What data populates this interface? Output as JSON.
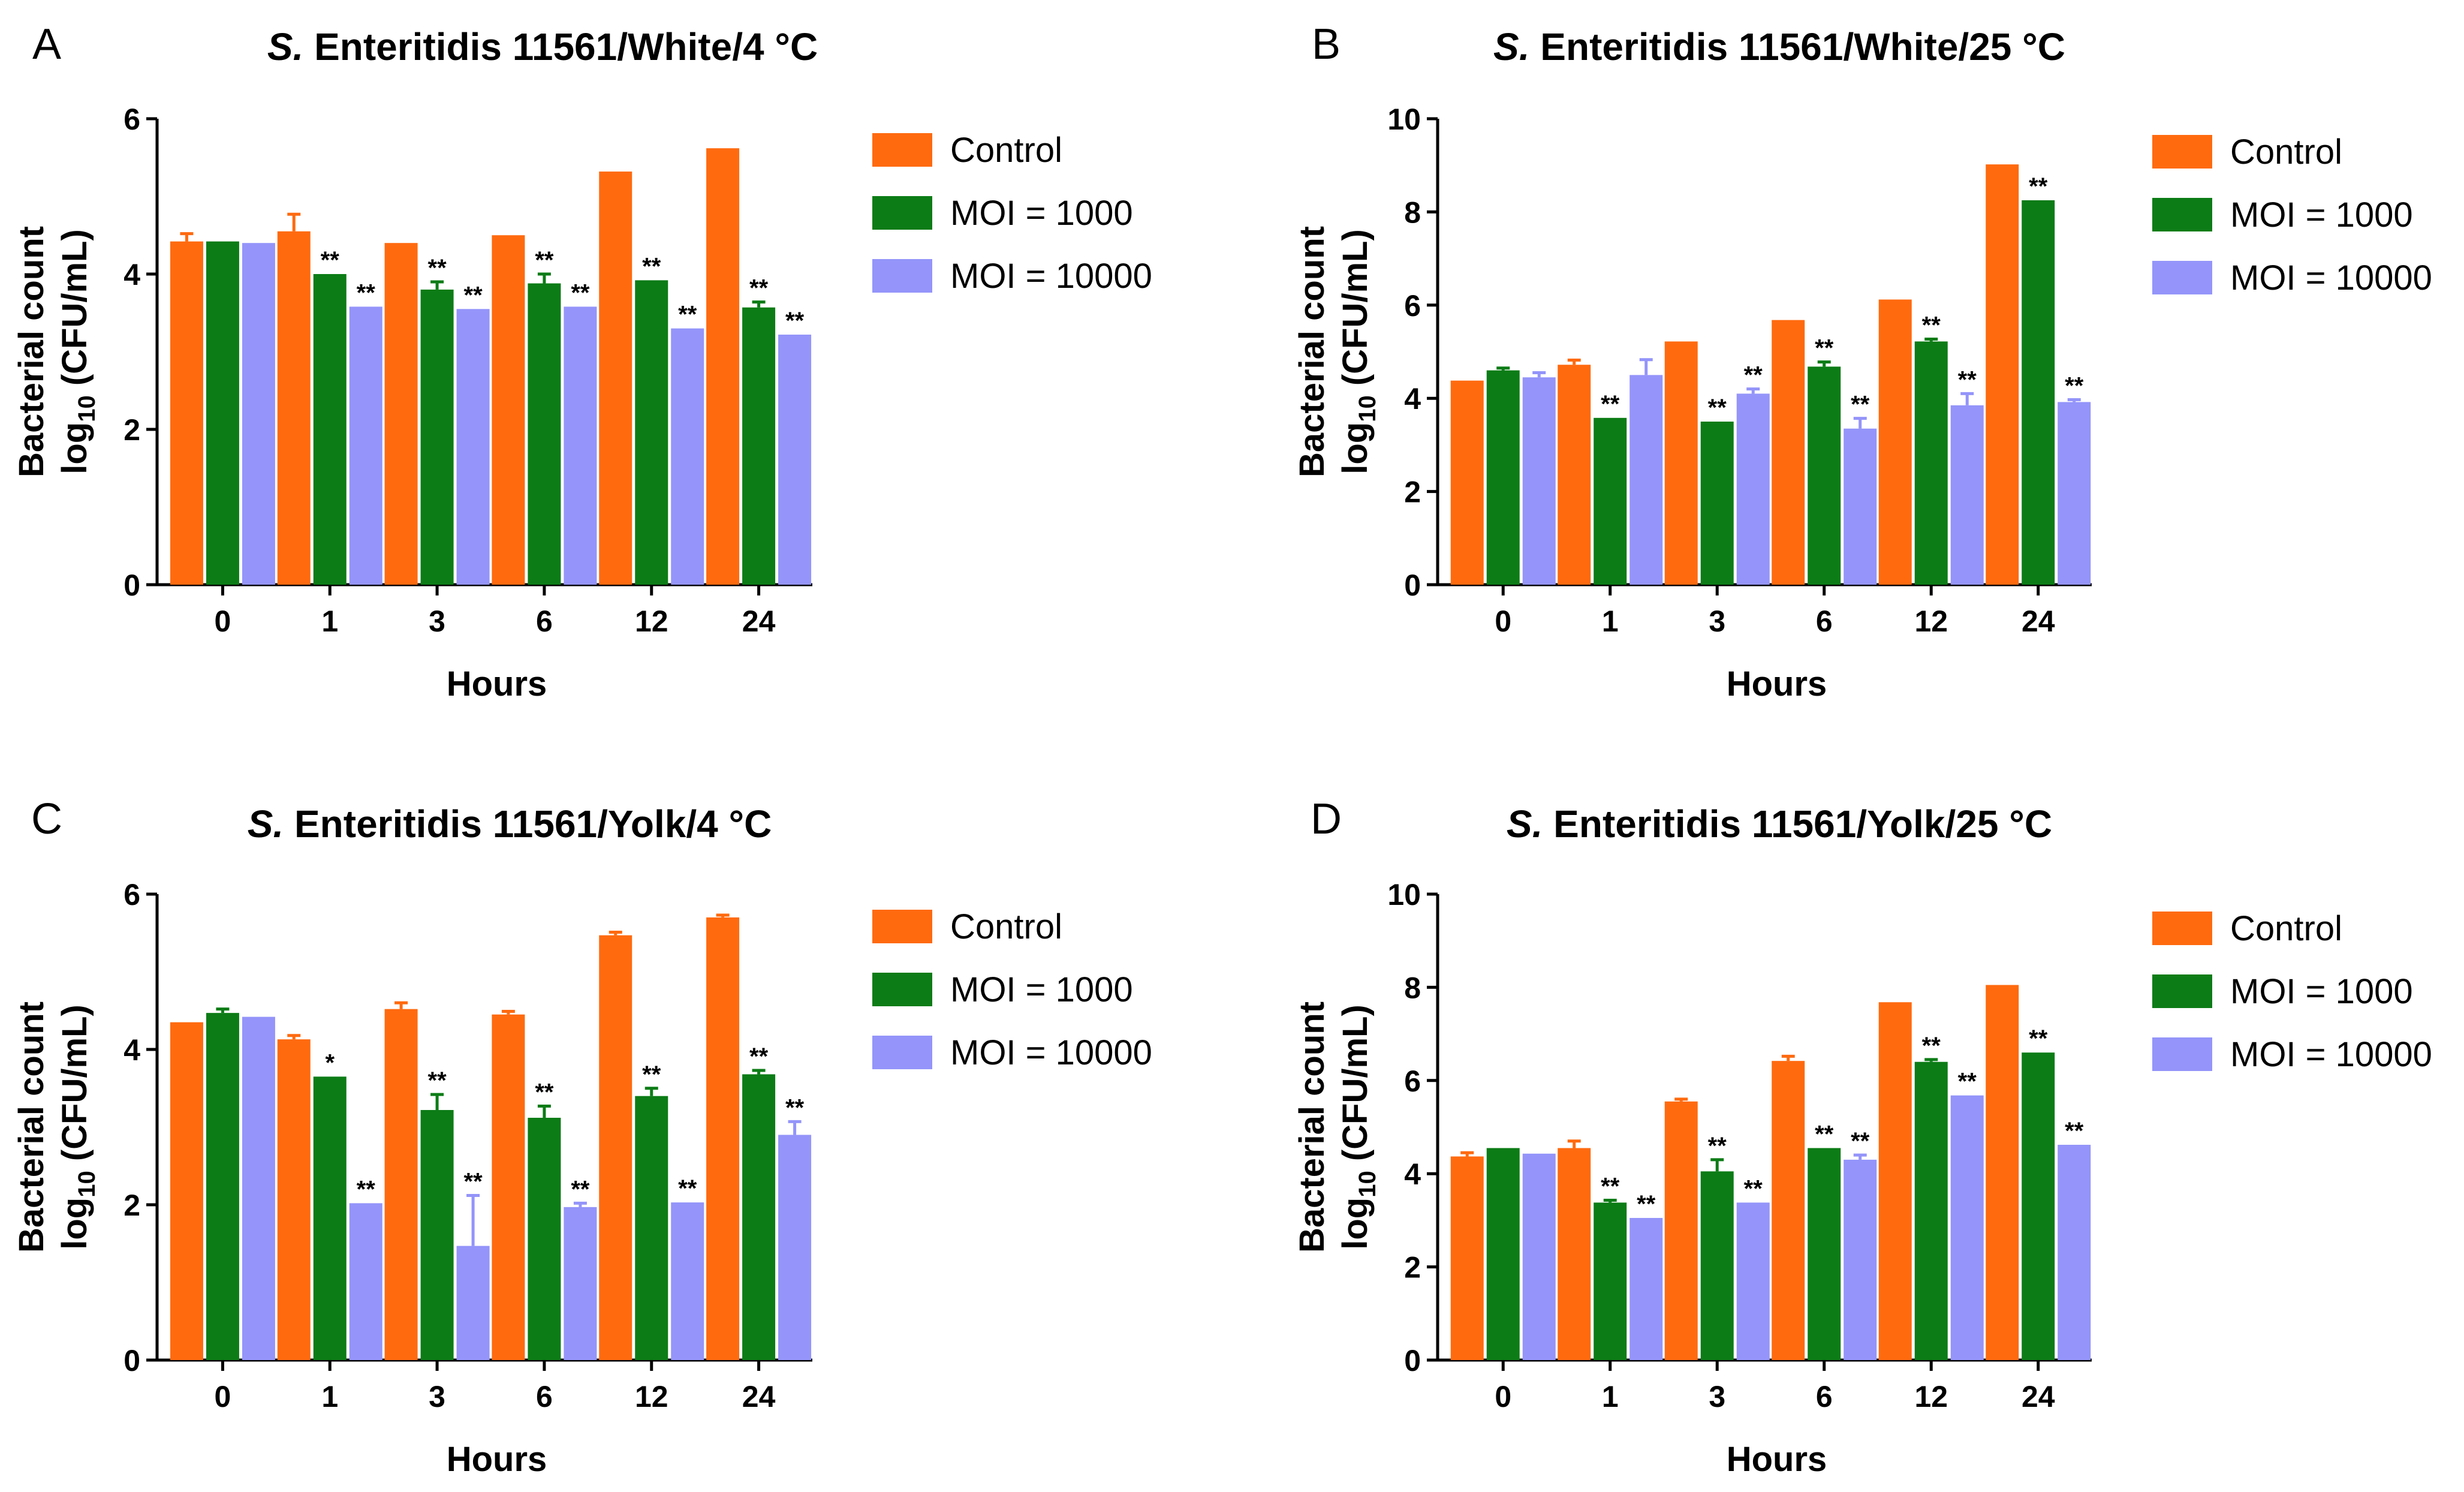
{
  "colors": {
    "Control": "#FF6A0F",
    "MOI = 1000": "#0C7C16",
    "MOI = 10000": "#9494FA",
    "axis": "#000000"
  },
  "chart_data": [
    {
      "type": "bar",
      "panel": "A",
      "title_italic": "S.",
      "title_rest": " Enteritidis 11561/White/4 °C",
      "xlabel": "Hours",
      "ylabel_line1": "Bacterial count",
      "ylabel_line2_pre": "log",
      "ylabel_line2_sub": "10",
      "ylabel_line2_post": " (CFU/mL)",
      "ylim": [
        0,
        6
      ],
      "yticks": [
        0,
        2,
        4,
        6
      ],
      "categories": [
        "0",
        "1",
        "3",
        "6",
        "12",
        "24"
      ],
      "series": [
        {
          "name": "Control",
          "values": [
            4.42,
            4.55,
            4.4,
            4.5,
            5.32,
            5.62
          ],
          "errors": [
            0.1,
            0.22,
            0.0,
            0.0,
            0.0,
            0.0
          ],
          "sig": [
            "",
            "",
            "",
            "",
            "",
            ""
          ]
        },
        {
          "name": "MOI = 1000",
          "values": [
            4.42,
            4.0,
            3.8,
            3.88,
            3.92,
            3.57
          ],
          "errors": [
            0.0,
            0.0,
            0.1,
            0.12,
            0.0,
            0.07
          ],
          "sig": [
            "",
            "**",
            "**",
            "**",
            "**",
            "**"
          ]
        },
        {
          "name": "MOI = 10000",
          "values": [
            4.4,
            3.58,
            3.55,
            3.58,
            3.3,
            3.22
          ],
          "errors": [
            0.0,
            0.0,
            0.0,
            0.0,
            0.0,
            0.0
          ],
          "sig": [
            "",
            "**",
            "**",
            "**",
            "**",
            "**"
          ]
        }
      ]
    },
    {
      "type": "bar",
      "panel": "B",
      "title_italic": "S.",
      "title_rest": " Enteritidis 11561/White/25 °C",
      "xlabel": "Hours",
      "ylabel_line1": "Bacterial count",
      "ylabel_line2_pre": "log",
      "ylabel_line2_sub": "10",
      "ylabel_line2_post": " (CFU/mL)",
      "ylim": [
        0,
        10
      ],
      "yticks": [
        0,
        2,
        4,
        6,
        8,
        10
      ],
      "categories": [
        "0",
        "1",
        "3",
        "6",
        "12",
        "24"
      ],
      "series": [
        {
          "name": "Control",
          "values": [
            4.38,
            4.72,
            5.22,
            5.68,
            6.12,
            9.02
          ],
          "errors": [
            0.0,
            0.1,
            0.0,
            0.0,
            0.0,
            0.0
          ],
          "sig": [
            "",
            "",
            "",
            "",
            "",
            ""
          ]
        },
        {
          "name": "MOI = 1000",
          "values": [
            4.6,
            3.58,
            3.5,
            4.68,
            5.22,
            8.25
          ],
          "errors": [
            0.05,
            0.0,
            0.0,
            0.1,
            0.05,
            0.0
          ],
          "sig": [
            "",
            "**",
            "**",
            "**",
            "**",
            "**"
          ]
        },
        {
          "name": "MOI = 10000",
          "values": [
            4.45,
            4.5,
            4.1,
            3.35,
            3.85,
            3.92
          ],
          "errors": [
            0.1,
            0.33,
            0.1,
            0.22,
            0.25,
            0.05
          ],
          "sig": [
            "",
            "",
            "**",
            "**",
            "**",
            "**"
          ]
        }
      ]
    },
    {
      "type": "bar",
      "panel": "C",
      "title_italic": "S.",
      "title_rest": " Enteritidis 11561/Yolk/4 °C",
      "xlabel": "Hours",
      "ylabel_line1": "Bacterial count",
      "ylabel_line2_pre": "log",
      "ylabel_line2_sub": "10",
      "ylabel_line2_post": " (CFU/mL)",
      "ylim": [
        0,
        6
      ],
      "yticks": [
        0,
        2,
        4,
        6
      ],
      "categories": [
        "0",
        "1",
        "3",
        "6",
        "12",
        "24"
      ],
      "series": [
        {
          "name": "Control",
          "values": [
            4.35,
            4.13,
            4.52,
            4.45,
            5.47,
            5.7
          ],
          "errors": [
            0.0,
            0.05,
            0.08,
            0.04,
            0.04,
            0.03
          ],
          "sig": [
            "",
            "",
            "",
            "",
            "",
            ""
          ]
        },
        {
          "name": "MOI = 1000",
          "values": [
            4.47,
            3.65,
            3.22,
            3.12,
            3.4,
            3.68
          ],
          "errors": [
            0.05,
            0.0,
            0.2,
            0.15,
            0.1,
            0.05
          ],
          "sig": [
            "",
            "*",
            "**",
            "**",
            "**",
            "**"
          ]
        },
        {
          "name": "MOI = 10000",
          "values": [
            4.42,
            2.02,
            1.47,
            1.97,
            2.03,
            2.9
          ],
          "errors": [
            0.0,
            0.0,
            0.65,
            0.05,
            0.0,
            0.17
          ],
          "sig": [
            "",
            "**",
            "**",
            "**",
            "**",
            "**"
          ]
        }
      ]
    },
    {
      "type": "bar",
      "panel": "D",
      "title_italic": "S.",
      "title_rest": " Enteritidis 11561/Yolk/25 °C",
      "xlabel": "Hours",
      "ylabel_line1": "Bacterial count",
      "ylabel_line2_pre": "log",
      "ylabel_line2_sub": "10",
      "ylabel_line2_post": " (CFU/mL)",
      "ylim": [
        0,
        10
      ],
      "yticks": [
        0,
        2,
        4,
        6,
        8,
        10
      ],
      "categories": [
        "0",
        "1",
        "3",
        "6",
        "12",
        "24"
      ],
      "series": [
        {
          "name": "Control",
          "values": [
            4.37,
            4.55,
            5.55,
            6.42,
            7.68,
            8.05
          ],
          "errors": [
            0.08,
            0.15,
            0.05,
            0.1,
            0.0,
            0.0
          ],
          "sig": [
            "",
            "",
            "",
            "",
            "",
            ""
          ]
        },
        {
          "name": "MOI = 1000",
          "values": [
            4.55,
            3.38,
            4.05,
            4.55,
            6.4,
            6.6
          ],
          "errors": [
            0.0,
            0.05,
            0.25,
            0.0,
            0.05,
            0.0
          ],
          "sig": [
            "",
            "**",
            "**",
            "**",
            "**",
            "**"
          ]
        },
        {
          "name": "MOI = 10000",
          "values": [
            4.43,
            3.05,
            3.38,
            4.3,
            5.68,
            4.62
          ],
          "errors": [
            0.0,
            0.0,
            0.0,
            0.1,
            0.0,
            0.0
          ],
          "sig": [
            "",
            "**",
            "**",
            "**",
            "**",
            "**"
          ]
        }
      ]
    }
  ]
}
